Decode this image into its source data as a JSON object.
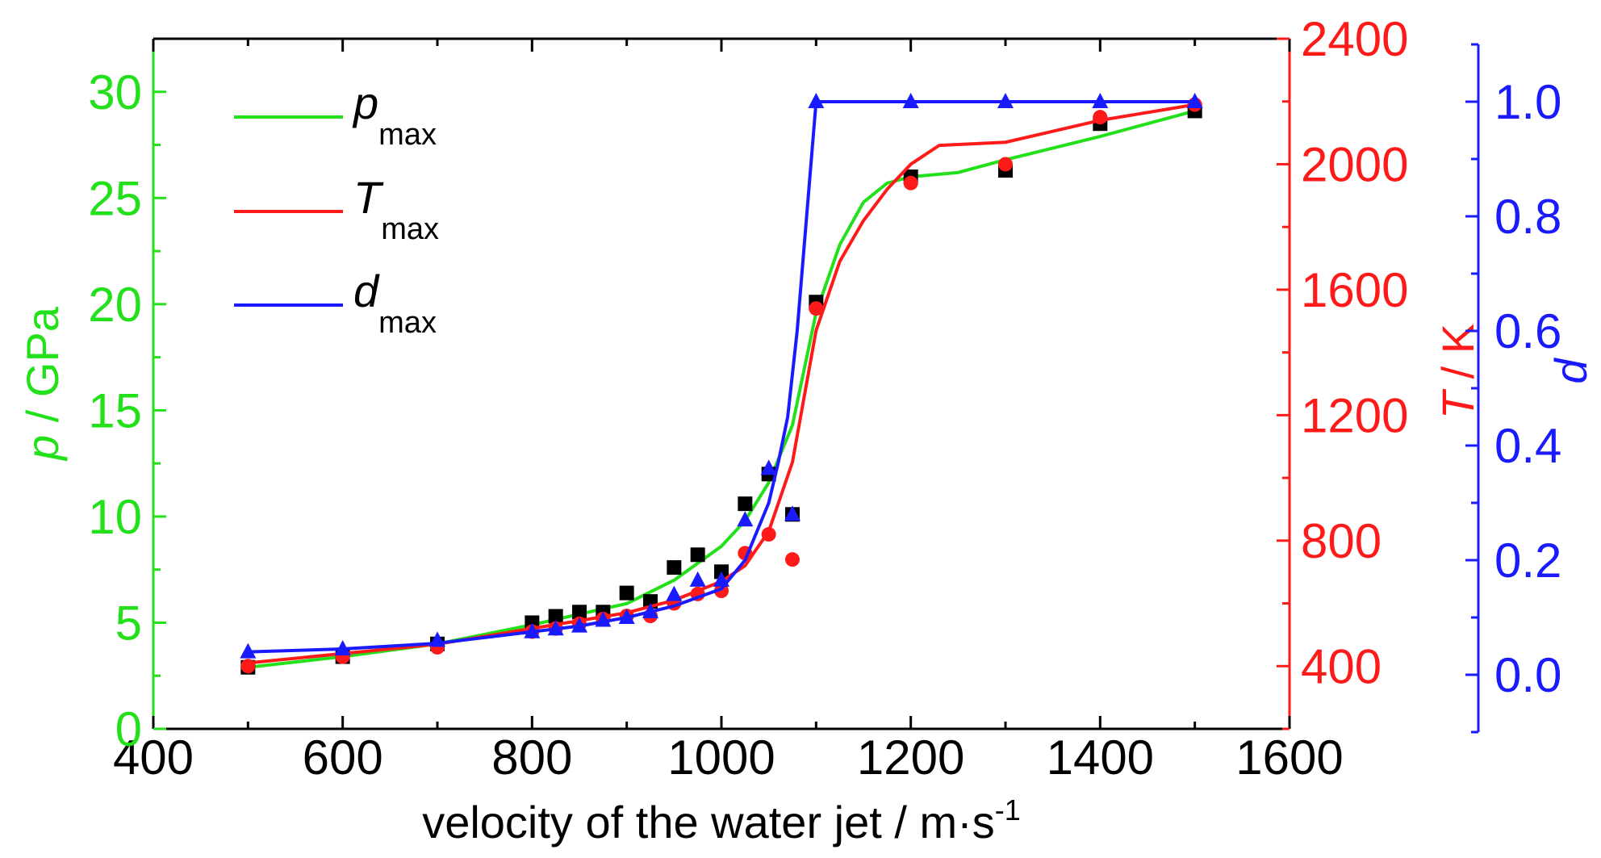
{
  "chart_data": {
    "type": "line",
    "colors": {
      "p": "#22e01a",
      "T": "#ff1a1a",
      "d": "#1a1aff",
      "frame": "#000000",
      "marker_p": "#000000"
    },
    "x_axis": {
      "label": "velocity of the water jet / m·s",
      "label_sup": "-1",
      "range": [
        400,
        1600
      ],
      "ticks": [
        400,
        600,
        800,
        1000,
        1200,
        1400,
        1600
      ],
      "tick_labels": [
        "400",
        "600",
        "800",
        "1000",
        "1200",
        "1400",
        "1600"
      ]
    },
    "y_left": {
      "label_italic": "p",
      "label_rest": " / GPa",
      "range": [
        0,
        32.5
      ],
      "ticks": [
        0,
        5,
        10,
        15,
        20,
        25,
        30
      ],
      "tick_labels": [
        "0",
        "5",
        "10",
        "15",
        "20",
        "25",
        "30"
      ]
    },
    "y_right_T": {
      "label_italic": "T",
      "label_rest": " / K",
      "range": [
        200,
        2400
      ],
      "ticks": [
        400,
        800,
        1200,
        1600,
        2000,
        2400
      ],
      "tick_labels": [
        "400",
        "800",
        "1200",
        "1600",
        "2000",
        "2400"
      ]
    },
    "y_right_d": {
      "label": "d",
      "range": [
        -0.1,
        1.1
      ],
      "ticks": [
        0.0,
        0.2,
        0.4,
        0.6,
        0.8,
        1.0
      ],
      "tick_labels": [
        "0.0",
        "0.2",
        "0.4",
        "0.6",
        "0.8",
        "1.0"
      ]
    },
    "legend": {
      "placement": "top-left",
      "entries": [
        {
          "key": "p",
          "main": "p",
          "sub": "max"
        },
        {
          "key": "T",
          "main": "T",
          "sub": "max"
        },
        {
          "key": "d",
          "main": "d",
          "sub": "max"
        }
      ]
    },
    "series": [
      {
        "key": "p",
        "axis": "left",
        "line": {
          "x": [
            500,
            600,
            700,
            800,
            850,
            900,
            950,
            1000,
            1025,
            1050,
            1075,
            1100,
            1125,
            1150,
            1175,
            1200,
            1250,
            1300,
            1400,
            1500
          ],
          "y": [
            2.9,
            3.4,
            4.0,
            4.9,
            5.4,
            5.9,
            7.0,
            8.6,
            9.8,
            11.6,
            14.3,
            19.6,
            22.8,
            24.8,
            25.7,
            26.0,
            26.2,
            26.8,
            27.9,
            29.1
          ]
        },
        "markers": {
          "shape": "square",
          "x": [
            500,
            600,
            700,
            800,
            825,
            850,
            875,
            900,
            925,
            950,
            975,
            1000,
            1025,
            1050,
            1075,
            1100,
            1200,
            1300,
            1400,
            1500
          ],
          "y": [
            2.9,
            3.4,
            4.0,
            5.0,
            5.3,
            5.5,
            5.5,
            6.4,
            6.0,
            7.6,
            8.2,
            7.4,
            10.6,
            12.0,
            10.1,
            20.1,
            26.0,
            26.3,
            28.5,
            29.1
          ]
        }
      },
      {
        "key": "T",
        "axis": "right_T",
        "line": {
          "x": [
            500,
            600,
            700,
            800,
            850,
            900,
            950,
            1000,
            1025,
            1050,
            1075,
            1100,
            1125,
            1150,
            1175,
            1200,
            1230,
            1300,
            1400,
            1500
          ],
          "y": [
            410,
            440,
            470,
            520,
            545,
            570,
            610,
            670,
            720,
            830,
            1050,
            1470,
            1690,
            1820,
            1920,
            2000,
            2060,
            2070,
            2140,
            2190
          ]
        },
        "markers": {
          "shape": "circle",
          "x": [
            500,
            600,
            700,
            800,
            825,
            850,
            875,
            900,
            925,
            950,
            975,
            1000,
            1025,
            1050,
            1075,
            1100,
            1200,
            1300,
            1400,
            1500
          ],
          "y": [
            400,
            430,
            460,
            510,
            520,
            535,
            550,
            560,
            560,
            600,
            630,
            640,
            760,
            820,
            740,
            1540,
            1940,
            2000,
            2150,
            2190
          ]
        }
      },
      {
        "key": "d",
        "axis": "right_d",
        "line": {
          "x": [
            500,
            600,
            700,
            800,
            850,
            900,
            950,
            1000,
            1025,
            1050,
            1060,
            1070,
            1080,
            1090,
            1100,
            1200,
            1300,
            1400,
            1500
          ],
          "y": [
            0.04,
            0.045,
            0.055,
            0.075,
            0.085,
            0.1,
            0.12,
            0.15,
            0.2,
            0.3,
            0.37,
            0.45,
            0.6,
            0.8,
            1.0,
            1.0,
            1.0,
            1.0,
            1.0
          ]
        },
        "markers": {
          "shape": "triangle",
          "x": [
            500,
            600,
            700,
            800,
            825,
            850,
            875,
            900,
            925,
            950,
            975,
            1000,
            1025,
            1050,
            1075,
            1100,
            1200,
            1300,
            1400,
            1500
          ],
          "y": [
            0.04,
            0.045,
            0.06,
            0.075,
            0.08,
            0.085,
            0.095,
            0.1,
            0.11,
            0.14,
            0.165,
            0.165,
            0.27,
            0.36,
            0.28,
            1.0,
            1.0,
            1.0,
            1.0,
            1.0
          ]
        }
      }
    ]
  }
}
